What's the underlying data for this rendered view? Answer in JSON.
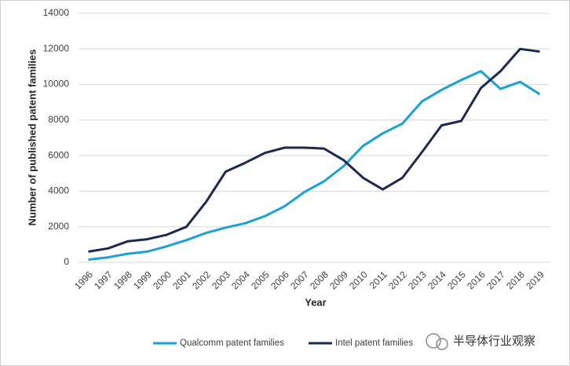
{
  "chart_data": {
    "type": "line",
    "x_label": "Year",
    "y_label": "Number of published patent families",
    "categories": [
      "1996",
      "1997",
      "1998",
      "1999",
      "2000",
      "2001",
      "2002",
      "2003",
      "2004",
      "2005",
      "2006",
      "2007",
      "2008",
      "2009",
      "2010",
      "2011",
      "2012",
      "2013",
      "2014",
      "2015",
      "2016",
      "2017",
      "2018",
      "2019"
    ],
    "series": [
      {
        "name": "Qualcomm patent families",
        "color": "#1ba1d7",
        "values": [
          150,
          280,
          480,
          600,
          900,
          1250,
          1650,
          1950,
          2200,
          2600,
          3150,
          3950,
          4550,
          5400,
          6550,
          7250,
          7800,
          9050,
          9700,
          10250,
          10750,
          9750,
          10150,
          9450
        ]
      },
      {
        "name": "Intel patent families",
        "color": "#1c2a4f",
        "values": [
          600,
          780,
          1180,
          1300,
          1550,
          2000,
          3400,
          5100,
          5600,
          6150,
          6450,
          6450,
          6400,
          5750,
          4750,
          4100,
          4750,
          6200,
          7700,
          7950,
          9800,
          10750,
          12000,
          11850
        ]
      }
    ],
    "ylim": [
      0,
      14000
    ],
    "yticks": [
      0,
      2000,
      4000,
      6000,
      8000,
      10000,
      12000,
      14000
    ],
    "grid": true,
    "legend": "bottom"
  },
  "watermark": "半导体行业观察"
}
